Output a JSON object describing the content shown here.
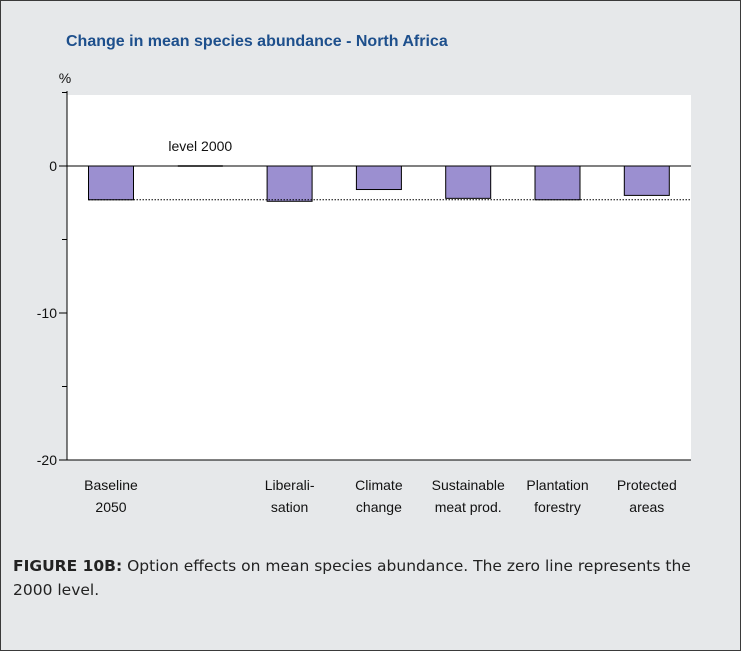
{
  "chart_data": {
    "type": "bar",
    "title": "Change in mean species abundance - North Africa",
    "ylabel": "%",
    "ylim": [
      -20,
      5
    ],
    "yticks_major": [
      0,
      -10,
      -20
    ],
    "yticks_minor": [
      5,
      -5,
      -15
    ],
    "categories": [
      [
        "Baseline",
        "2050"
      ],
      [
        "",
        ""
      ],
      [
        "Liberali-",
        "sation"
      ],
      [
        "Climate",
        "change"
      ],
      [
        "Sustainable",
        "meat prod."
      ],
      [
        "Plantation",
        "forestry"
      ],
      [
        "Protected",
        "areas"
      ]
    ],
    "values": [
      -2.3,
      0,
      -2.4,
      -1.6,
      -2.2,
      -2.3,
      -2.0
    ],
    "annotations": {
      "level_2000_label": "level 2000",
      "baseline_reference": -2.3
    },
    "grid": false,
    "bar_color": "#9b8fd0",
    "bar_edge_color": "#000000"
  },
  "caption": {
    "label": "FIGURE 10B:",
    "text": " Option effects on mean species abundance. The zero line represents the 2000 level."
  },
  "colors": {
    "title": "#1d4f8c",
    "background": "#e6e8ea",
    "plot_background": "#ffffff"
  }
}
